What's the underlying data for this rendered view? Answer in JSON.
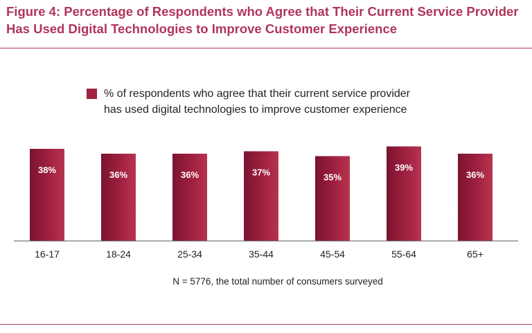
{
  "title": {
    "line1": "Figure 4: Percentage of Respondents who Agree that Their Current Service Provider",
    "line2": "Has Used Digital Technologies to Improve Customer Experience"
  },
  "legend": {
    "line1": "% of respondents who agree that their current service provider",
    "line2": "has used digital technologies to improve customer experience"
  },
  "footnote": "N = 5776, the total number of consumers surveyed",
  "colors": {
    "accent": "#b0355a",
    "bar_dark": "#7a1430",
    "bar_mid": "#a02040",
    "bar_light": "#b8344f"
  },
  "chart_data": {
    "type": "bar",
    "categories": [
      "16-17",
      "18-24",
      "25-34",
      "35-44",
      "45-54",
      "55-64",
      "65+"
    ],
    "series": [
      {
        "name": "% of respondents who agree that their current service provider has used digital technologies to improve customer experience",
        "values": [
          38,
          36,
          36,
          37,
          35,
          39,
          36
        ]
      }
    ],
    "data_labels": [
      "38%",
      "36%",
      "36%",
      "37%",
      "35%",
      "39%",
      "36%"
    ],
    "legend_position": "top",
    "grid": false
  }
}
